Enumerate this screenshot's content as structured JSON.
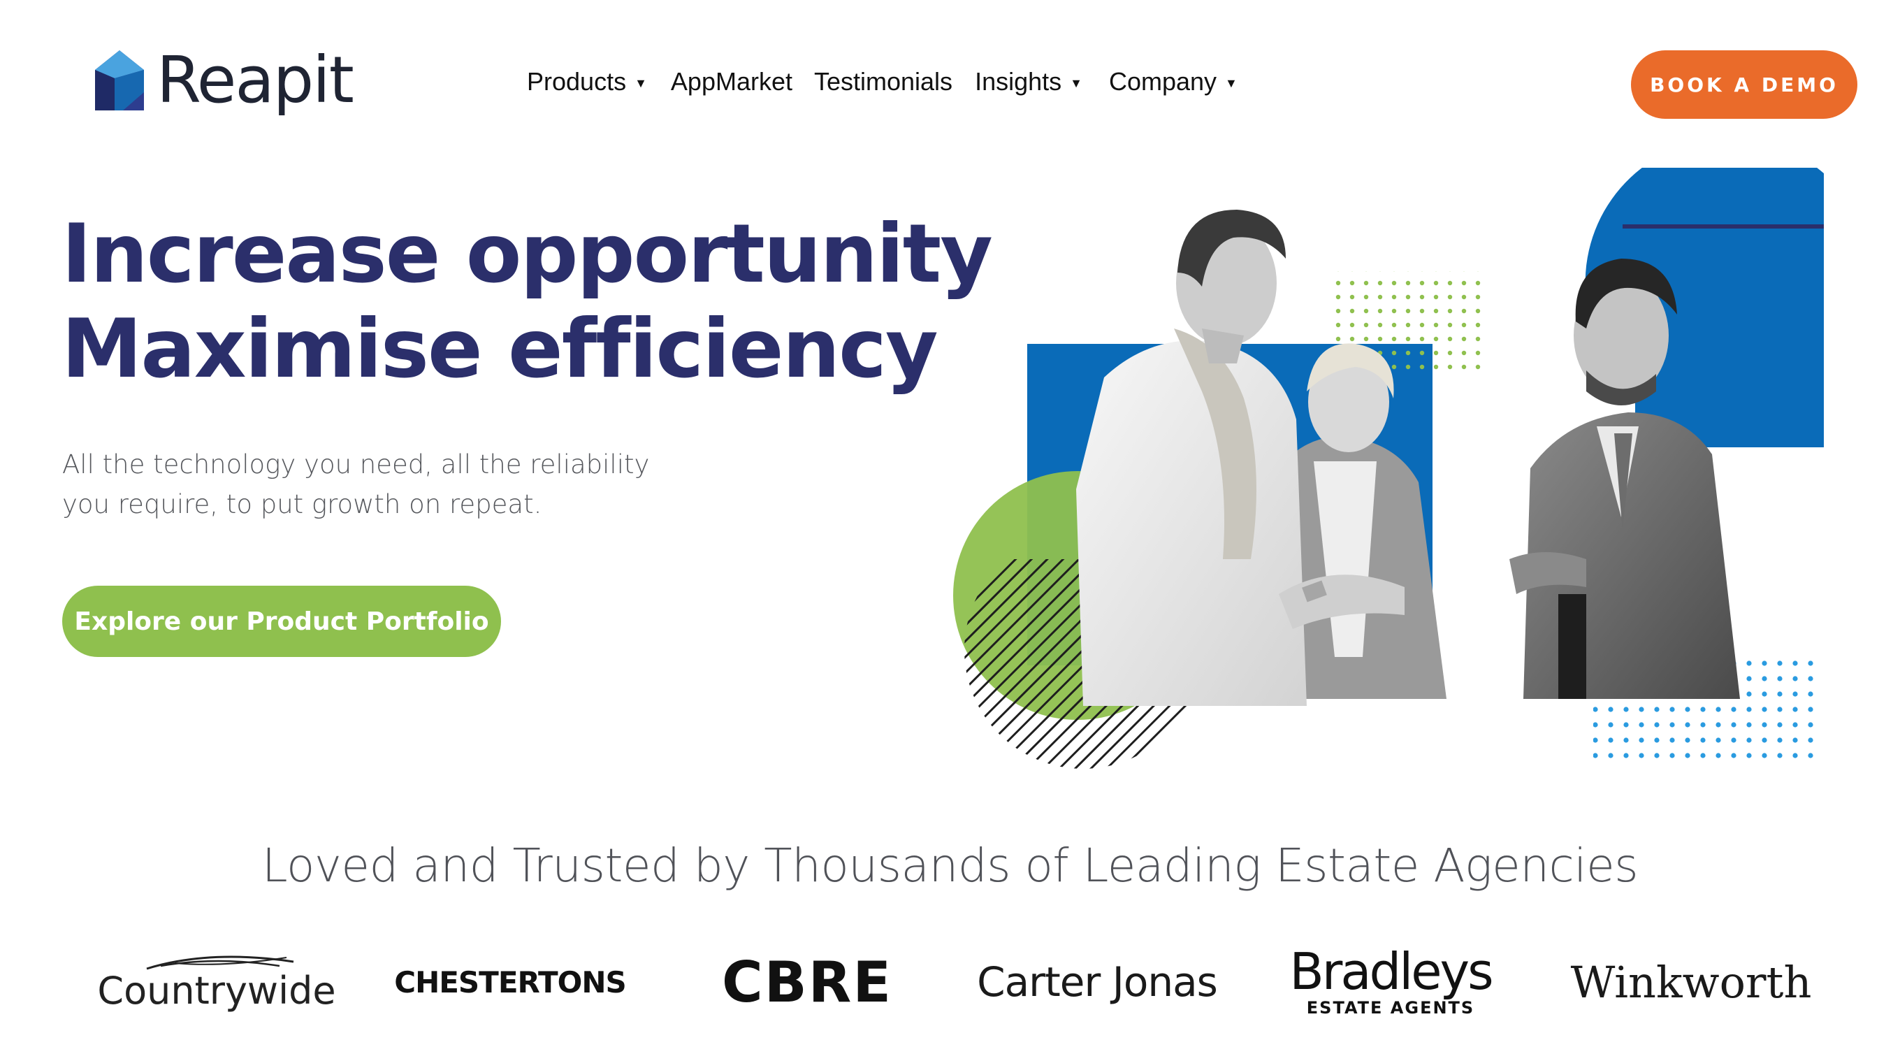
{
  "header": {
    "logo_text": "Reapit",
    "nav": [
      {
        "label": "Products",
        "has_dropdown": true
      },
      {
        "label": "AppMarket",
        "has_dropdown": false
      },
      {
        "label": "Testimonials",
        "has_dropdown": false
      },
      {
        "label": "Insights",
        "has_dropdown": true
      },
      {
        "label": "Company",
        "has_dropdown": true
      }
    ],
    "cta_label": "BOOK A DEMO",
    "dropdown_icon": "caret-down-icon"
  },
  "hero": {
    "title_line1": "Increase opportunity",
    "title_line2": "Maximise efficiency",
    "subtitle_line1": "All the technology you need, all the reliability",
    "subtitle_line2": "you require, to put growth on repeat.",
    "cta_label": "Explore our Product Portfolio"
  },
  "trust": {
    "heading": "Loved and Trusted by Thousands of Leading Estate Agencies",
    "logos": [
      "Countrywide",
      "CHESTERTONS",
      "CBRE",
      "Carter Jonas",
      "Bradleys",
      "ESTATE AGENTS",
      "Winkworth"
    ]
  },
  "colors": {
    "brand_navy": "#2b2f6b",
    "accent_orange": "#ea6b2a",
    "accent_green": "#8fc04e",
    "accent_blue": "#0a6bb8",
    "text_gray": "#55575c"
  }
}
